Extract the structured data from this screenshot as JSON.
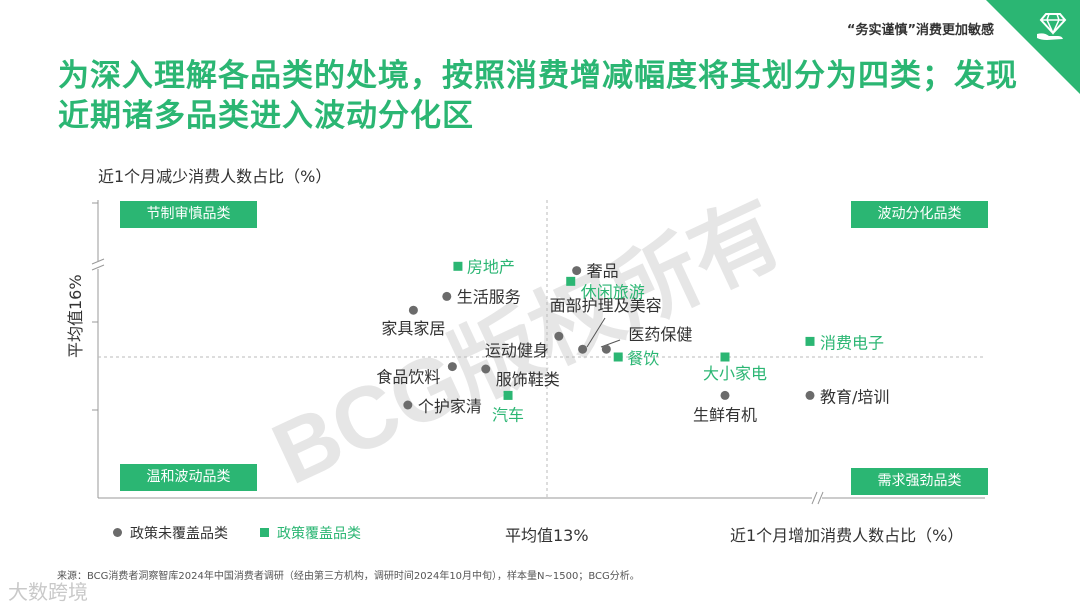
{
  "header": {
    "tagline": "“务实谨慎”消费更加敏感",
    "title": "为深入理解各品类的处境，按照消费增减幅度将其划分为四类；发现近期诸多品类进入波动分化区"
  },
  "axis": {
    "y_label": "近1个月减少消费人数占比（%）",
    "y_avg_label": "平均值16%",
    "x_avg_label": "平均值13%",
    "x_label": "近1个月增加消费人数占比（%）"
  },
  "quadrants": {
    "top_left": "节制审慎品类",
    "top_right": "波动分化品类",
    "bottom_left": "温和波动品类",
    "bottom_right": "需求强劲品类"
  },
  "legend": {
    "not_covered": "政策未覆盖品类",
    "covered": "政策覆盖品类"
  },
  "colors": {
    "green": "#2bb673",
    "gray_dot": "#6b6b6b"
  },
  "source": "来源：BCG消费者洞察智库2024年中国消费者调研（经由第三方机构，调研时间2024年10月中旬），样本量N~1500；BCG分析。",
  "watermark": "BCG版权所有",
  "footer_logo": "大数跨境",
  "chart_data": {
    "type": "scatter",
    "x_avg": 13,
    "y_avg": 16,
    "axis_breaks": [
      "x-axis upper range",
      "y-axis upper range"
    ],
    "series": [
      {
        "name": "政策未覆盖品类",
        "points": [
          {
            "label": "奢品",
            "x": 13.5,
            "y": 17.8
          },
          {
            "label": "生活服务",
            "x": 11.2,
            "y": 17.2
          },
          {
            "label": "家具家居",
            "x": 10.6,
            "y": 16.9
          },
          {
            "label": "运动健身",
            "x": 13.2,
            "y": 16.4
          },
          {
            "label": "面部护理及美容",
            "x": 13.6,
            "y": 16.15
          },
          {
            "label": "医药保健",
            "x": 14.0,
            "y": 16.15
          },
          {
            "label": "食品饮料",
            "x": 11.3,
            "y": 15.8
          },
          {
            "label": "服饰鞋类",
            "x": 11.9,
            "y": 15.75
          },
          {
            "label": "个护家清",
            "x": 10.5,
            "y": 15.0
          },
          {
            "label": "生鲜有机",
            "x": 16.0,
            "y": 15.2
          },
          {
            "label": "教育/培训",
            "x": 18.0,
            "y": 15.2
          }
        ]
      },
      {
        "name": "政策覆盖品类",
        "points": [
          {
            "label": "房地产",
            "x": 11.4,
            "y": 17.9
          },
          {
            "label": "休闲旅游",
            "x": 13.4,
            "y": 17.55
          },
          {
            "label": "餐饮",
            "x": 14.2,
            "y": 16.0
          },
          {
            "label": "大小家电",
            "x": 16.0,
            "y": 16.0
          },
          {
            "label": "消费电子",
            "x": 18.0,
            "y": 16.3
          },
          {
            "label": "汽车",
            "x": 12.3,
            "y": 15.2
          }
        ]
      }
    ]
  }
}
